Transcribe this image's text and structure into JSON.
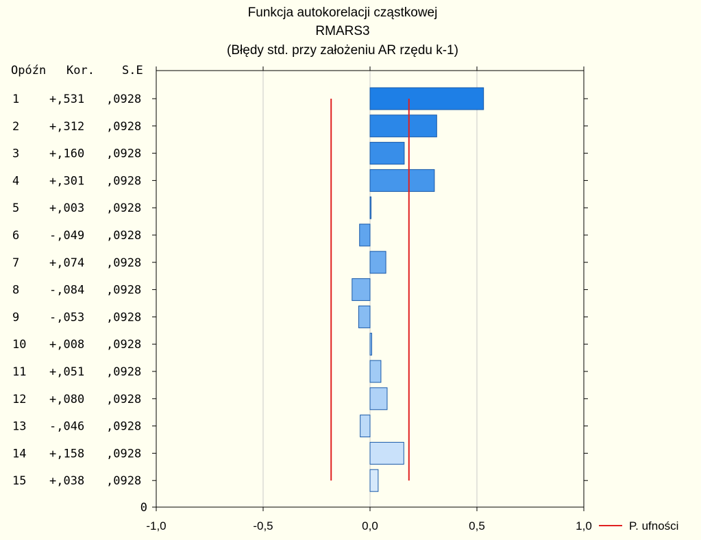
{
  "chart_data": {
    "type": "bar",
    "orientation": "horizontal",
    "title": "Funkcja autokorelacji cząstkowej",
    "subtitle": "RMARS3",
    "note": "(Błędy std. przy założeniu AR rzędu k-1)",
    "table_headers": [
      "Opóźn",
      "Kor.",
      "S.E"
    ],
    "lags": [
      1,
      2,
      3,
      4,
      5,
      6,
      7,
      8,
      9,
      10,
      11,
      12,
      13,
      14,
      15
    ],
    "values": [
      0.531,
      0.312,
      0.16,
      0.301,
      0.003,
      -0.049,
      0.074,
      -0.084,
      -0.053,
      0.008,
      0.051,
      0.08,
      -0.046,
      0.158,
      0.038
    ],
    "value_labels": [
      "+,531",
      "+,312",
      "+,160",
      "+,301",
      "+,003",
      "-,049",
      "+,074",
      "-,084",
      "-,053",
      "+,008",
      "+,051",
      "+,080",
      "-,046",
      "+,158",
      "+,038"
    ],
    "se_labels": [
      ",0928",
      ",0928",
      ",0928",
      ",0928",
      ",0928",
      ",0928",
      ",0928",
      ",0928",
      ",0928",
      ",0928",
      ",0928",
      ",0928",
      ",0928",
      ",0928",
      ",0928"
    ],
    "zero_row_label": "0",
    "confidence_limit": 0.182,
    "xlim": [
      -1.0,
      1.0
    ],
    "x_ticks": [
      -1.0,
      -0.5,
      0.0,
      0.5,
      1.0
    ],
    "x_tick_labels": [
      "-1,0",
      "-0,5",
      "0,0",
      "0,5",
      "1,0"
    ],
    "legend": {
      "label": "P. ufności",
      "position": "bottom-right"
    },
    "grid": true,
    "colors": {
      "background": "#fffff0",
      "bar_fill_top": "#1e7fe6",
      "bar_fill_bottom": "#d6e9fb",
      "bar_stroke": "#1858a8",
      "confidence_line": "#e02020",
      "grid": "#c8c8c8"
    }
  }
}
